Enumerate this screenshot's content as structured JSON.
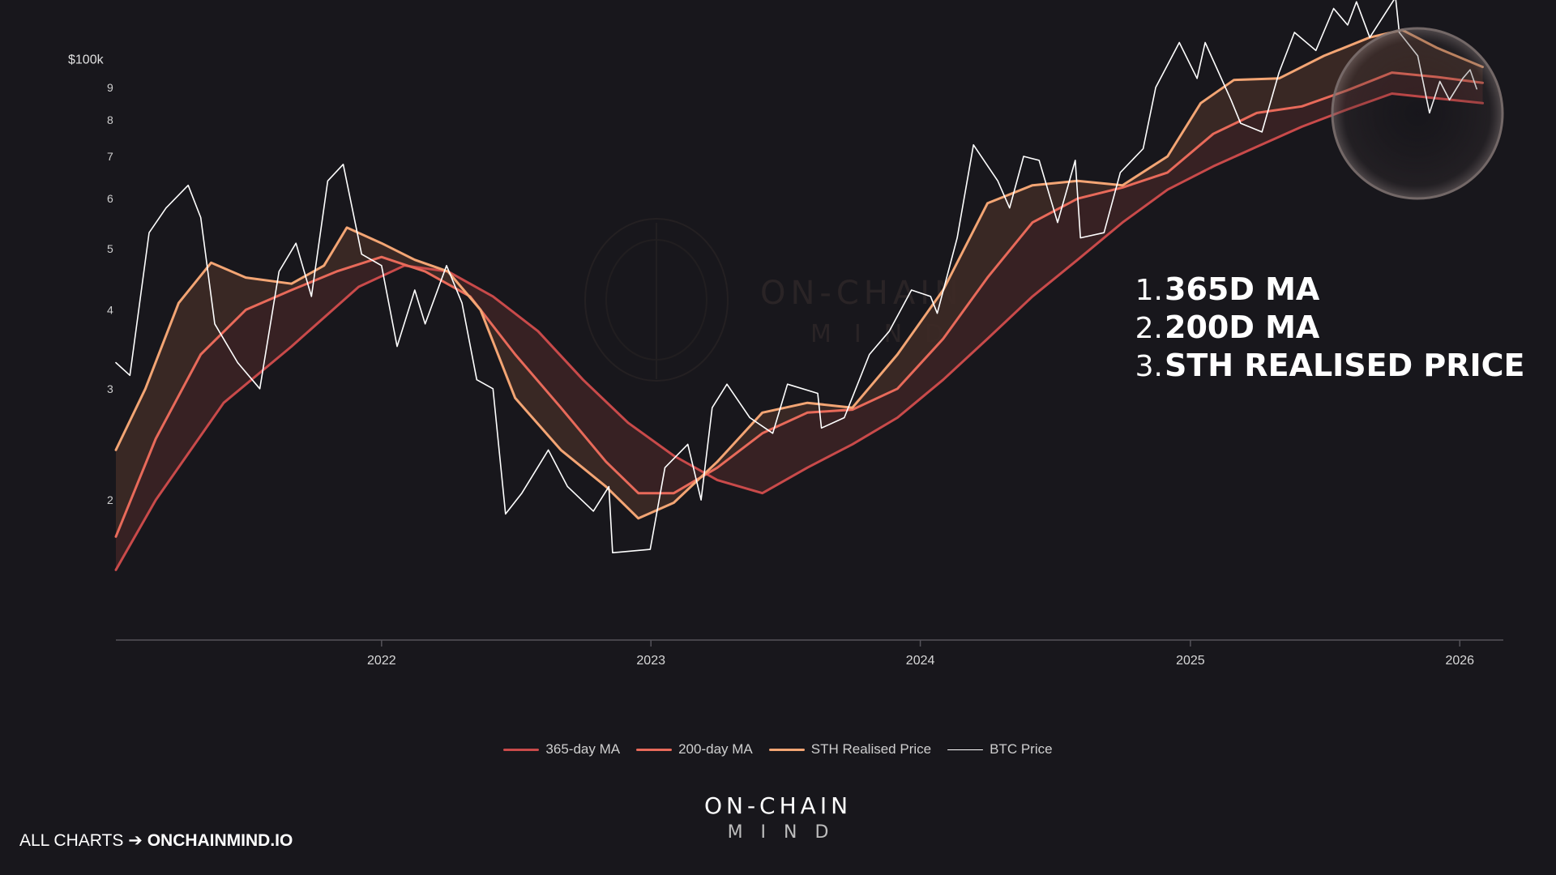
{
  "brand": {
    "watermark_top": "ON-CHAIN",
    "watermark_bottom": "MIND",
    "logo_top": "ON-CHAIN",
    "logo_bottom": "MIND"
  },
  "footer": {
    "prefix": "ALL CHARTS",
    "arrow": "➔",
    "link": "ONCHAINMIND.IO"
  },
  "annotations": [
    {
      "num": "1.",
      "text": "365D MA"
    },
    {
      "num": "2.",
      "text": "200D MA"
    },
    {
      "num": "3.",
      "text": "STH REALISED PRICE"
    }
  ],
  "colors": {
    "background": "#18171c",
    "ma365": "#c94a4a",
    "ma200": "#e86a5a",
    "sth": "#f3a574",
    "btc": "#ffffff"
  },
  "chart_data": {
    "type": "line",
    "yscale": "log",
    "ylim": [
      12000,
      110000
    ],
    "xlim": [
      "2021-01-06",
      "2026-03-01"
    ],
    "y_top_label": "$100k",
    "y_ticks": [
      {
        "value": 90000,
        "label": "9"
      },
      {
        "value": 80000,
        "label": "8"
      },
      {
        "value": 70000,
        "label": "7"
      },
      {
        "value": 60000,
        "label": "6"
      },
      {
        "value": 50000,
        "label": "5"
      },
      {
        "value": 40000,
        "label": "4"
      },
      {
        "value": 30000,
        "label": "3"
      },
      {
        "value": 20000,
        "label": "2"
      }
    ],
    "x_ticks": [
      {
        "date": "2022-01-01",
        "label": "2022"
      },
      {
        "date": "2023-01-01",
        "label": "2023"
      },
      {
        "date": "2024-01-01",
        "label": "2024"
      },
      {
        "date": "2025-01-01",
        "label": "2025"
      },
      {
        "date": "2026-01-01",
        "label": "2026"
      }
    ],
    "legend": [
      "365-day MA",
      "200-day MA",
      "STH Realised Price",
      "BTC Price"
    ],
    "highlight": {
      "from": "2025-08-15",
      "to": "2026-02-15",
      "note": "circled recent period"
    },
    "series": [
      {
        "name": "365-day MA",
        "color": "#c94a4a",
        "points": [
          [
            "2021-01-06",
            15500
          ],
          [
            "2021-03-01",
            20000
          ],
          [
            "2021-06-01",
            28500
          ],
          [
            "2021-09-01",
            35000
          ],
          [
            "2021-12-01",
            43500
          ],
          [
            "2022-02-01",
            47000
          ],
          [
            "2022-04-01",
            46000
          ],
          [
            "2022-06-01",
            42000
          ],
          [
            "2022-08-01",
            37000
          ],
          [
            "2022-10-01",
            31000
          ],
          [
            "2022-12-01",
            26500
          ],
          [
            "2023-02-01",
            23500
          ],
          [
            "2023-04-01",
            21500
          ],
          [
            "2023-06-01",
            20500
          ],
          [
            "2023-08-01",
            22500
          ],
          [
            "2023-10-01",
            24500
          ],
          [
            "2023-12-01",
            27000
          ],
          [
            "2024-02-01",
            31000
          ],
          [
            "2024-04-01",
            36000
          ],
          [
            "2024-06-01",
            42000
          ],
          [
            "2024-08-01",
            48000
          ],
          [
            "2024-10-01",
            55000
          ],
          [
            "2024-12-01",
            62000
          ],
          [
            "2025-02-01",
            67500
          ],
          [
            "2025-04-01",
            72500
          ],
          [
            "2025-06-01",
            78000
          ],
          [
            "2025-08-01",
            83000
          ],
          [
            "2025-10-01",
            88000
          ],
          [
            "2025-12-01",
            86500
          ],
          [
            "2026-02-01",
            85000
          ]
        ]
      },
      {
        "name": "200-day MA",
        "color": "#e86a5a",
        "points": [
          [
            "2021-01-06",
            17500
          ],
          [
            "2021-03-01",
            25000
          ],
          [
            "2021-05-01",
            34000
          ],
          [
            "2021-07-01",
            40000
          ],
          [
            "2021-09-01",
            43000
          ],
          [
            "2021-11-01",
            46000
          ],
          [
            "2022-01-01",
            48500
          ],
          [
            "2022-03-01",
            46000
          ],
          [
            "2022-05-01",
            42000
          ],
          [
            "2022-07-01",
            34000
          ],
          [
            "2022-09-01",
            28000
          ],
          [
            "2022-11-01",
            23000
          ],
          [
            "2022-12-15",
            20500
          ],
          [
            "2023-02-01",
            20500
          ],
          [
            "2023-04-01",
            22500
          ],
          [
            "2023-06-01",
            25500
          ],
          [
            "2023-08-01",
            27500
          ],
          [
            "2023-10-01",
            27800
          ],
          [
            "2023-12-01",
            30000
          ],
          [
            "2024-02-01",
            36000
          ],
          [
            "2024-04-01",
            45000
          ],
          [
            "2024-06-01",
            55000
          ],
          [
            "2024-08-01",
            60000
          ],
          [
            "2024-10-01",
            62500
          ],
          [
            "2024-12-01",
            66000
          ],
          [
            "2025-02-01",
            76000
          ],
          [
            "2025-04-01",
            82000
          ],
          [
            "2025-06-01",
            84000
          ],
          [
            "2025-08-01",
            89000
          ],
          [
            "2025-10-01",
            95000
          ],
          [
            "2025-12-01",
            93500
          ],
          [
            "2026-02-01",
            91500
          ]
        ]
      },
      {
        "name": "STH Realised Price",
        "color": "#f3a574",
        "points": [
          [
            "2021-01-06",
            24000
          ],
          [
            "2021-02-15",
            30000
          ],
          [
            "2021-04-01",
            41000
          ],
          [
            "2021-05-15",
            47500
          ],
          [
            "2021-07-01",
            45000
          ],
          [
            "2021-09-01",
            44000
          ],
          [
            "2021-10-15",
            47000
          ],
          [
            "2021-11-15",
            54000
          ],
          [
            "2022-01-01",
            51000
          ],
          [
            "2022-02-15",
            48000
          ],
          [
            "2022-04-01",
            46000
          ],
          [
            "2022-05-15",
            40000
          ],
          [
            "2022-07-01",
            29000
          ],
          [
            "2022-09-01",
            24000
          ],
          [
            "2022-11-01",
            21000
          ],
          [
            "2022-12-15",
            18700
          ],
          [
            "2023-02-01",
            19800
          ],
          [
            "2023-04-01",
            23000
          ],
          [
            "2023-06-01",
            27500
          ],
          [
            "2023-08-01",
            28500
          ],
          [
            "2023-10-01",
            28000
          ],
          [
            "2023-12-01",
            34000
          ],
          [
            "2024-02-01",
            43000
          ],
          [
            "2024-04-01",
            59000
          ],
          [
            "2024-06-01",
            63000
          ],
          [
            "2024-08-01",
            64000
          ],
          [
            "2024-10-01",
            63000
          ],
          [
            "2024-12-01",
            70000
          ],
          [
            "2025-01-15",
            85000
          ],
          [
            "2025-03-01",
            92500
          ],
          [
            "2025-05-01",
            93000
          ],
          [
            "2025-07-01",
            101000
          ],
          [
            "2025-09-01",
            108000
          ],
          [
            "2025-10-15",
            111000
          ],
          [
            "2025-12-01",
            104000
          ],
          [
            "2026-02-01",
            97000
          ]
        ]
      },
      {
        "name": "BTC Price",
        "color": "#ffffff",
        "points": [
          [
            "2021-01-06",
            33000
          ],
          [
            "2021-01-25",
            31500
          ],
          [
            "2021-02-20",
            53000
          ],
          [
            "2021-03-15",
            58000
          ],
          [
            "2021-04-14",
            63000
          ],
          [
            "2021-05-01",
            56000
          ],
          [
            "2021-05-20",
            38000
          ],
          [
            "2021-06-20",
            33000
          ],
          [
            "2021-07-20",
            30000
          ],
          [
            "2021-08-15",
            46000
          ],
          [
            "2021-09-07",
            51000
          ],
          [
            "2021-09-28",
            42000
          ],
          [
            "2021-10-20",
            64000
          ],
          [
            "2021-11-10",
            68000
          ],
          [
            "2021-12-05",
            49000
          ],
          [
            "2022-01-01",
            47000
          ],
          [
            "2022-01-22",
            35000
          ],
          [
            "2022-02-15",
            43000
          ],
          [
            "2022-03-01",
            38000
          ],
          [
            "2022-03-30",
            47000
          ],
          [
            "2022-04-20",
            41000
          ],
          [
            "2022-05-10",
            31000
          ],
          [
            "2022-06-01",
            30000
          ],
          [
            "2022-06-18",
            19000
          ],
          [
            "2022-07-10",
            20500
          ],
          [
            "2022-08-15",
            24000
          ],
          [
            "2022-09-10",
            21000
          ],
          [
            "2022-10-15",
            19200
          ],
          [
            "2022-11-05",
            21000
          ],
          [
            "2022-11-10",
            16500
          ],
          [
            "2022-12-31",
            16700
          ],
          [
            "2023-01-20",
            22500
          ],
          [
            "2023-02-20",
            24500
          ],
          [
            "2023-03-10",
            20000
          ],
          [
            "2023-03-25",
            28000
          ],
          [
            "2023-04-14",
            30500
          ],
          [
            "2023-05-15",
            27000
          ],
          [
            "2023-06-15",
            25500
          ],
          [
            "2023-07-05",
            30500
          ],
          [
            "2023-08-15",
            29500
          ],
          [
            "2023-08-20",
            26000
          ],
          [
            "2023-09-20",
            27000
          ],
          [
            "2023-10-24",
            34000
          ],
          [
            "2023-11-20",
            37000
          ],
          [
            "2023-12-20",
            43000
          ],
          [
            "2024-01-15",
            42000
          ],
          [
            "2024-01-24",
            39500
          ],
          [
            "2024-02-20",
            52000
          ],
          [
            "2024-03-13",
            73000
          ],
          [
            "2024-04-15",
            64000
          ],
          [
            "2024-05-01",
            58000
          ],
          [
            "2024-05-20",
            70000
          ],
          [
            "2024-06-10",
            69000
          ],
          [
            "2024-07-05",
            55000
          ],
          [
            "2024-07-29",
            69000
          ],
          [
            "2024-08-05",
            52000
          ],
          [
            "2024-09-06",
            53000
          ],
          [
            "2024-09-28",
            66000
          ],
          [
            "2024-10-29",
            72000
          ],
          [
            "2024-11-15",
            90000
          ],
          [
            "2024-12-17",
            106000
          ],
          [
            "2025-01-10",
            93000
          ],
          [
            "2025-01-21",
            106000
          ],
          [
            "2025-02-25",
            86000
          ],
          [
            "2025-03-10",
            79000
          ],
          [
            "2025-04-08",
            76500
          ],
          [
            "2025-05-01",
            95000
          ],
          [
            "2025-05-22",
            110000
          ],
          [
            "2025-06-20",
            103000
          ],
          [
            "2025-07-14",
            120000
          ],
          [
            "2025-08-02",
            113000
          ],
          [
            "2025-08-14",
            123000
          ],
          [
            "2025-09-01",
            108000
          ],
          [
            "2025-10-06",
            125000
          ],
          [
            "2025-10-11",
            110000
          ],
          [
            "2025-11-05",
            101000
          ],
          [
            "2025-11-21",
            82000
          ],
          [
            "2025-12-05",
            92000
          ],
          [
            "2025-12-18",
            86000
          ],
          [
            "2026-01-05",
            93000
          ],
          [
            "2026-01-15",
            96000
          ],
          [
            "2026-01-24",
            89500
          ]
        ]
      }
    ]
  }
}
